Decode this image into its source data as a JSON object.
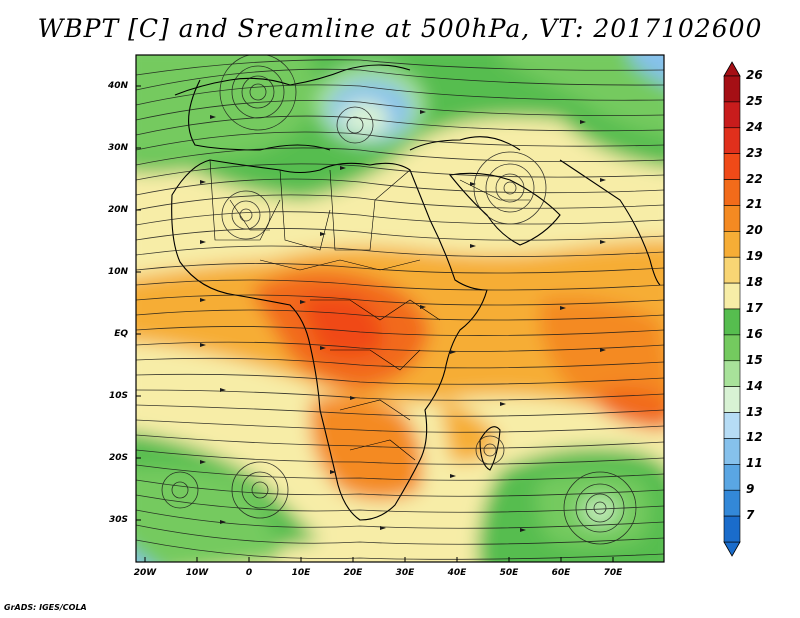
{
  "title": "WBPT [C] and Sreamline at 500hPa, VT: 2017102600",
  "credit": "GrADS: IGES/COLA",
  "lat_labels": [
    "40N",
    "30N",
    "20N",
    "10N",
    "EQ",
    "10S",
    "20S",
    "30S"
  ],
  "lon_labels": [
    "20W",
    "10W",
    "0",
    "10E",
    "20E",
    "30E",
    "40E",
    "50E",
    "60E",
    "70E"
  ],
  "colorbar": {
    "labels": [
      "26",
      "25",
      "24",
      "23",
      "22",
      "21",
      "20",
      "19",
      "18",
      "17",
      "16",
      "15",
      "14",
      "13",
      "12",
      "11",
      "9",
      "7"
    ],
    "colors": [
      "#a50f15",
      "#c81c1c",
      "#e0301c",
      "#f04a18",
      "#f26b1a",
      "#f48a22",
      "#f6ad36",
      "#f8d574",
      "#f7eda7",
      "#56bd4f",
      "#74ca5f",
      "#a8e29a",
      "#d8f2d4",
      "#b6dcf5",
      "#86c1ec",
      "#5aa6e3",
      "#3388d8",
      "#1a6ccb"
    ]
  },
  "map": {
    "field": "WBPT [C]",
    "level": "500hPa",
    "valid_time": "2017102600",
    "region": "Africa and surrounding oceans, 20W-80E, 36S-45N"
  }
}
